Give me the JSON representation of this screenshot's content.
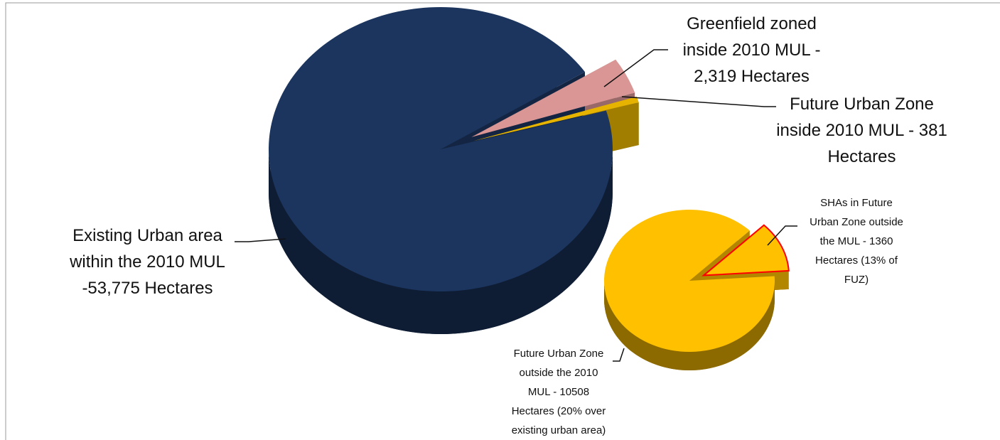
{
  "chart_data": [
    {
      "type": "pie",
      "categories": [
        "Greenfield zoned inside 2010 MUL - 2,319 Hectares",
        "Future Urban Zone inside 2010 MUL - 381 Hectares",
        "Existing Urban area within the 2010 MUL -53,775 Hectares"
      ],
      "values": [
        2319,
        381,
        53775
      ],
      "colors": [
        "#d99694",
        "#e6b400",
        "#1b355e"
      ]
    },
    {
      "type": "pie",
      "categories": [
        "SHAs in Future Urban Zone outside the MUL - 1360 Hectares (13% of FUZ)",
        "Future Urban Zone outside the 2010 MUL - 10508 Hectares (20% over existing urban area)"
      ],
      "values": [
        1360,
        10508
      ],
      "colors": [
        "#ffc000",
        "#ffc000"
      ]
    }
  ]
}
